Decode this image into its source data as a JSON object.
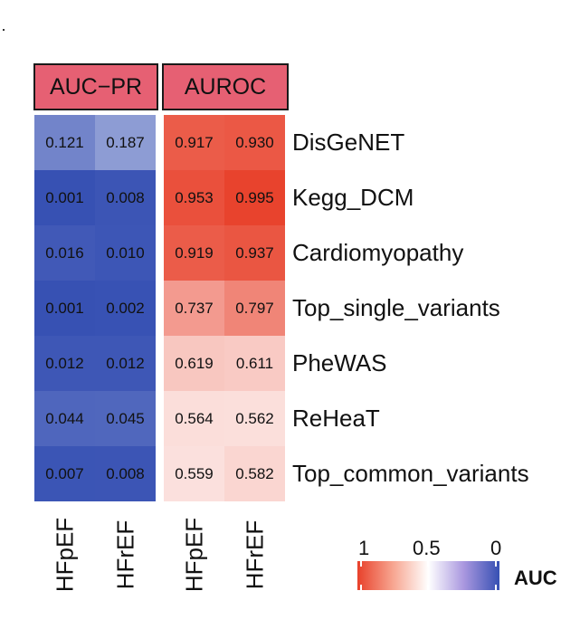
{
  "chart_data": {
    "type": "heatmap",
    "panels": [
      {
        "name": "AUC−PR",
        "columns": [
          "HFpEF",
          "HFrEF"
        ],
        "values": [
          [
            0.121,
            0.187
          ],
          [
            0.001,
            0.008
          ],
          [
            0.016,
            0.01
          ],
          [
            0.001,
            0.002
          ],
          [
            0.012,
            0.012
          ],
          [
            0.044,
            0.045
          ],
          [
            0.007,
            0.008
          ]
        ],
        "labels": [
          [
            "0.121",
            "0.187"
          ],
          [
            "0.001",
            "0.008"
          ],
          [
            "0.016",
            "0.010"
          ],
          [
            "0.001",
            "0.002"
          ],
          [
            "0.012",
            "0.012"
          ],
          [
            "0.044",
            "0.045"
          ],
          [
            "0.007",
            "0.008"
          ]
        ]
      },
      {
        "name": "AUROC",
        "columns": [
          "HFpEF",
          "HFrEF"
        ],
        "values": [
          [
            0.917,
            0.93
          ],
          [
            0.953,
            0.995
          ],
          [
            0.919,
            0.937
          ],
          [
            0.737,
            0.797
          ],
          [
            0.619,
            0.611
          ],
          [
            0.564,
            0.562
          ],
          [
            0.559,
            0.582
          ]
        ],
        "labels": [
          [
            "0.917",
            "0.930"
          ],
          [
            "0.953",
            "0.995"
          ],
          [
            "0.919",
            "0.937"
          ],
          [
            "0.737",
            "0.797"
          ],
          [
            "0.619",
            "0.611"
          ],
          [
            "0.564",
            "0.562"
          ],
          [
            "0.559",
            "0.582"
          ]
        ]
      }
    ],
    "rows": [
      "DisGeNET",
      "Kegg_DCM",
      "Cardiomyopathy",
      "Top_single_variants",
      "PheWAS",
      "ReHeaT",
      "Top_common_variants"
    ],
    "legend": {
      "title": "AUC",
      "ticks": [
        "1",
        "0.5",
        "0"
      ],
      "tick_values": [
        1,
        0.5,
        0
      ],
      "colors": {
        "high": "#e8412b",
        "mid": "#ffffff",
        "low": "#3650b3"
      }
    }
  }
}
